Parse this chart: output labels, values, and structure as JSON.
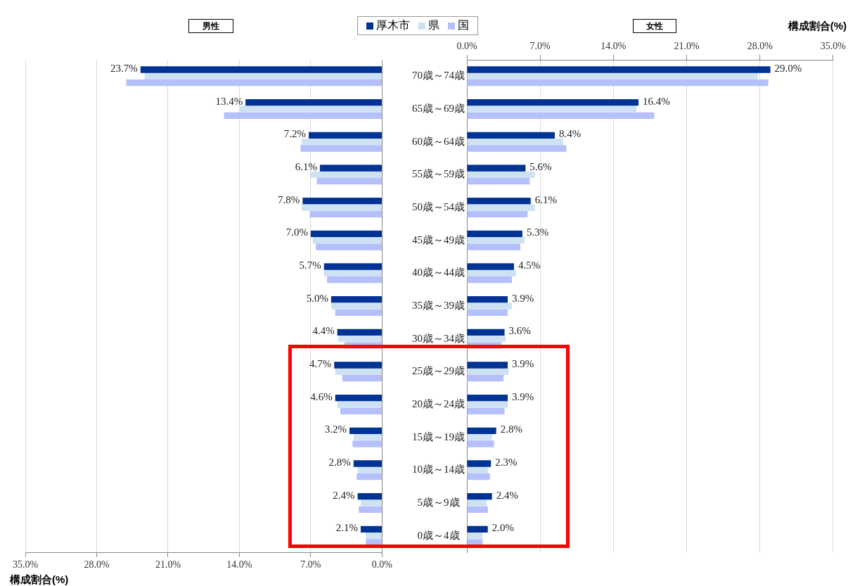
{
  "chart_data": [
    {
      "type": "bar",
      "orientation": "horizontal",
      "title": "男性",
      "xlabel": "構成割合(%)",
      "categories": [
        null,
        null,
        null,
        null,
        null,
        null,
        null,
        null,
        null,
        null,
        null,
        null,
        null,
        null,
        null
      ],
      "series": [
        {
          "name": "厚木市",
          "color": "#003393",
          "values": [
            23.7,
            13.4,
            7.2,
            6.1,
            7.8,
            7.0,
            5.7,
            5.0,
            4.4,
            4.7,
            4.6,
            3.2,
            2.8,
            2.4,
            2.1
          ],
          "value_labels": [
            "23.7%",
            "13.4%",
            "7.2%",
            "6.1%",
            "7.8%",
            "7.0%",
            "5.7%",
            "5.0%",
            "4.4%",
            "4.7%",
            "4.6%",
            "3.2%",
            "2.8%",
            "2.4%",
            "2.1%"
          ]
        },
        {
          "name": "県",
          "color": "#cfe2f3",
          "values": [
            23.3,
            14.0,
            7.9,
            7.0,
            7.9,
            6.8,
            5.7,
            5.0,
            4.3,
            4.6,
            4.4,
            2.8,
            2.4,
            2.1,
            1.6
          ]
        },
        {
          "name": "国",
          "color": "#b4bffc",
          "values": [
            25.1,
            15.5,
            8.0,
            6.4,
            7.1,
            6.5,
            5.4,
            4.6,
            3.7,
            3.9,
            4.1,
            2.9,
            2.5,
            2.3,
            1.6
          ]
        }
      ],
      "xlim": [
        35,
        0
      ],
      "xticks": [
        {
          "value": 35,
          "label": "35.0%"
        },
        {
          "value": 28,
          "label": "28.0%"
        },
        {
          "value": 21,
          "label": "21.0%"
        },
        {
          "value": 14,
          "label": "14.0%"
        },
        {
          "value": 7,
          "label": "7.0%"
        },
        {
          "value": 0,
          "label": "0.0%"
        }
      ],
      "grid": "x",
      "legend": "top",
      "tick_labels": "x"
    },
    {
      "type": "bar",
      "orientation": "horizontal",
      "title": "女性",
      "xlabel": "構成割合(%)",
      "categories": [
        "70歳～74歳",
        "65歳～69歳",
        "60歳～64歳",
        "55歳～59歳",
        "50歳～54歳",
        "45歳～49歳",
        "40歳～44歳",
        "35歳～39歳",
        "30歳～34歳",
        "25歳～29歳",
        "20歳～24歳",
        "15歳～19歳",
        "10歳～14歳",
        "5歳～9歳",
        "0歳～4歳"
      ],
      "series": [
        {
          "color": "#003393",
          "values": [
            29.0,
            16.4,
            8.4,
            5.6,
            6.1,
            5.3,
            4.5,
            3.9,
            3.6,
            3.9,
            3.9,
            2.8,
            2.3,
            2.4,
            2.0
          ],
          "value_labels": [
            "29.0%",
            "16.4%",
            "8.4%",
            "5.6%",
            "6.1%",
            "5.3%",
            "4.5%",
            "3.9%",
            "3.6%",
            "3.9%",
            "3.9%",
            "2.8%",
            "2.3%",
            "2.4%",
            "2.0%"
          ]
        },
        {
          "color": "#cfe2f3",
          "values": [
            27.8,
            16.2,
            9.2,
            6.5,
            6.5,
            5.5,
            4.7,
            4.3,
            3.7,
            4.0,
            3.9,
            2.4,
            2.0,
            1.9,
            1.5
          ]
        },
        {
          "color": "#b4bffc",
          "values": [
            28.8,
            17.9,
            9.5,
            6.0,
            5.8,
            5.1,
            4.3,
            3.9,
            3.3,
            3.5,
            3.6,
            2.6,
            2.2,
            2.0,
            1.5
          ]
        }
      ],
      "xlim": [
        0,
        35
      ],
      "xticks": [
        {
          "value": 0,
          "label": "0.0%"
        },
        {
          "value": 7,
          "label": "7.0%"
        },
        {
          "value": 14,
          "label": "14.0%"
        },
        {
          "value": 21,
          "label": "21.0%"
        },
        {
          "value": 28,
          "label": "28.0%"
        },
        {
          "value": 35,
          "label": "35.0%"
        }
      ],
      "grid": "x"
    }
  ]
}
